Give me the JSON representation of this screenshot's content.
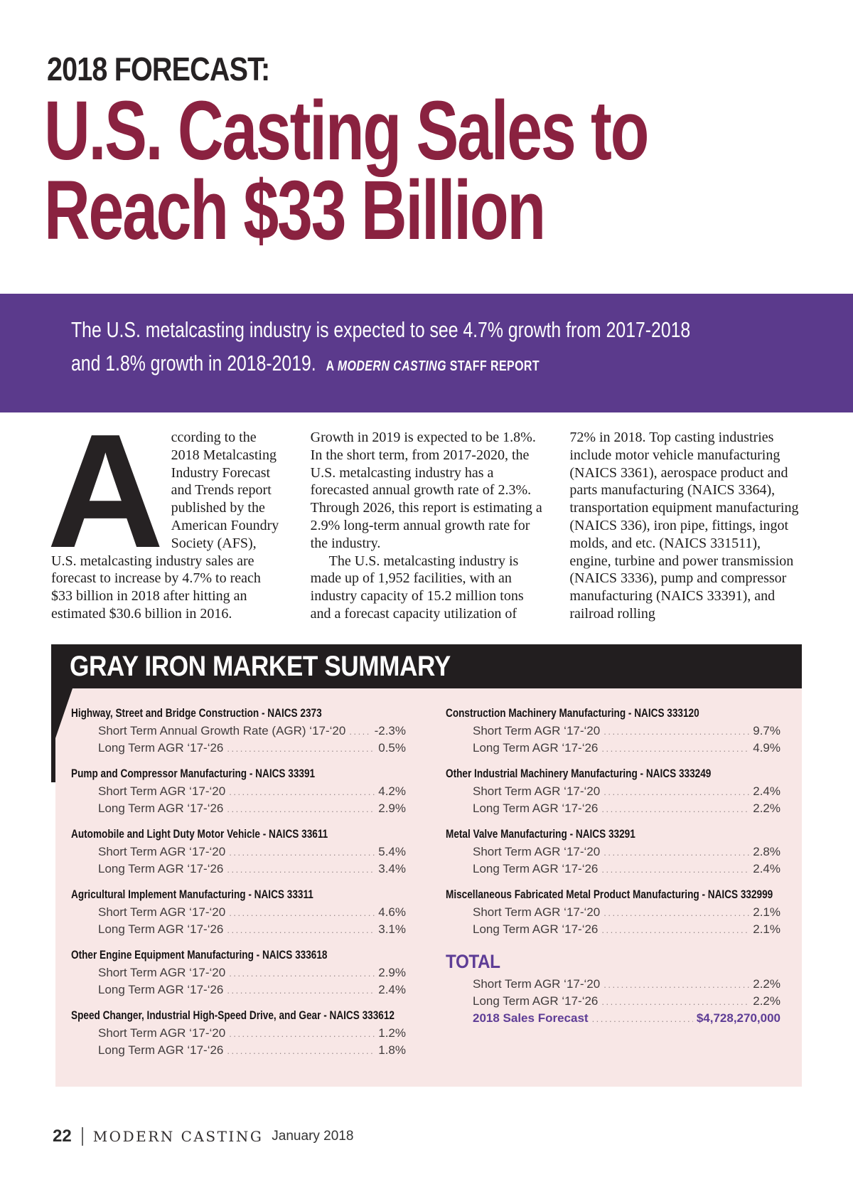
{
  "colors": {
    "maroon": "#8a2240",
    "purple": "#5b3a8c",
    "panel_pink": "#f8e7e6",
    "ink": "#221e1f",
    "total_purple": "#5e3d96"
  },
  "kicker": "2018 FORECAST:",
  "title_line1": "U.S. Casting Sales to",
  "title_line2": "Reach $33 Billion",
  "banner": {
    "line1": "The U.S. metalcasting industry is expected to see 4.7% growth from 2017-2018",
    "line2": "and 1.8% growth in 2018-2019.",
    "byline_prefix": "A",
    "byline_title": "MODERN CASTING",
    "byline_suffix": "STAFF REPORT"
  },
  "article": {
    "dropcap": "A",
    "col1_text": "ccording to the 2018 Metalcasting Industry Forecast and Trends report published by the American Foundry Society (AFS), U.S. metalcasting industry sales are forecast to increase by 4.7% to reach $33 billion in 2018 after hitting an estimated $30.6 billion in 2016.",
    "col2_p1": "Growth in 2019 is expected to be 1.8%. In the short term, from 2017-2020, the U.S. metalcasting industry has a forecasted annual growth rate of 2.3%. Through 2026, this report is estimating a 2.9% long-term annual growth rate for the industry.",
    "col2_p2": "The U.S. metalcasting industry is made up of 1,952 facilities, with an industry capacity of 15.2 million tons and a forecast capacity utilization of",
    "col3_text": "72% in 2018. Top casting industries include motor vehicle manufacturing (NAICS 3361), aerospace product and parts manufacturing (NAICS 3364), transportation equipment manufacturing (NAICS 336), iron pipe, fittings, ingot molds, and etc. (NAICS 331511), engine, turbine and power transmission (NAICS 3336), pump and compressor manufacturing (NAICS 33391), and railroad rolling"
  },
  "summary": {
    "title": "GRAY IRON MARKET SUMMARY",
    "left_groups": [
      {
        "heading": "Highway, Street and Bridge Construction - NAICS 2373",
        "rows": [
          {
            "label": "Short Term Annual Growth Rate (AGR) ‘17-‘20",
            "value": "-2.3%"
          },
          {
            "label": "Long Term AGR ‘17-‘26",
            "value": "0.5%"
          }
        ]
      },
      {
        "heading": "Pump and Compressor Manufacturing - NAICS 33391",
        "rows": [
          {
            "label": "Short Term AGR ‘17-‘20",
            "value": "4.2%"
          },
          {
            "label": "Long Term AGR ‘17-‘26",
            "value": "2.9%"
          }
        ]
      },
      {
        "heading": "Automobile and Light Duty Motor Vehicle - NAICS 33611",
        "rows": [
          {
            "label": "Short Term AGR ‘17-‘20",
            "value": "5.4%"
          },
          {
            "label": "Long Term AGR ‘17-‘26",
            "value": "3.4%"
          }
        ]
      },
      {
        "heading": "Agricultural Implement Manufacturing - NAICS 33311",
        "rows": [
          {
            "label": "Short Term AGR ‘17-‘20",
            "value": "4.6%"
          },
          {
            "label": "Long Term AGR ‘17-‘26",
            "value": "3.1%"
          }
        ]
      },
      {
        "heading": "Other Engine Equipment Manufacturing - NAICS 333618",
        "rows": [
          {
            "label": "Short Term AGR ‘17-‘20",
            "value": "2.9%"
          },
          {
            "label": "Long Term AGR ‘17-‘26",
            "value": "2.4%"
          }
        ]
      },
      {
        "heading": "Speed Changer, Industrial High-Speed Drive, and Gear - NAICS 333612",
        "rows": [
          {
            "label": "Short Term AGR ‘17-‘20",
            "value": "1.2%"
          },
          {
            "label": "Long Term AGR ‘17-‘26",
            "value": "1.8%"
          }
        ]
      }
    ],
    "right_groups": [
      {
        "heading": "Construction Machinery Manufacturing - NAICS 333120",
        "rows": [
          {
            "label": "Short Term AGR ‘17-‘20",
            "value": "9.7%"
          },
          {
            "label": "Long Term AGR ‘17-‘26",
            "value": "4.9%"
          }
        ]
      },
      {
        "heading": "Other Industrial Machinery Manufacturing - NAICS 333249",
        "rows": [
          {
            "label": "Short Term AGR ‘17-‘20",
            "value": "2.4%"
          },
          {
            "label": "Long Term AGR ‘17-‘26",
            "value": "2.2%"
          }
        ]
      },
      {
        "heading": "Metal Valve Manufacturing - NAICS 33291",
        "rows": [
          {
            "label": "Short Term AGR ‘17-‘20",
            "value": "2.8%"
          },
          {
            "label": "Long Term AGR ‘17-‘26",
            "value": "2.4%"
          }
        ]
      },
      {
        "heading": "Miscellaneous Fabricated Metal Product Manufacturing - NAICS 332999",
        "rows": [
          {
            "label": "Short Term AGR ‘17-‘20",
            "value": "2.1%"
          },
          {
            "label": "Long Term AGR ‘17-‘26",
            "value": "2.1%"
          }
        ]
      }
    ],
    "total": {
      "title": "TOTAL",
      "rows": [
        {
          "label": "Short Term AGR ‘17-‘20",
          "value": "2.2%"
        },
        {
          "label": "Long Term AGR ‘17-‘26",
          "value": "2.2%"
        }
      ],
      "forecast_label": "2018 Sales Forecast",
      "forecast_value": "$4,728,270,000"
    }
  },
  "footer": {
    "page_number": "22",
    "magazine": "MODERN CASTING",
    "issue": "January 2018"
  }
}
